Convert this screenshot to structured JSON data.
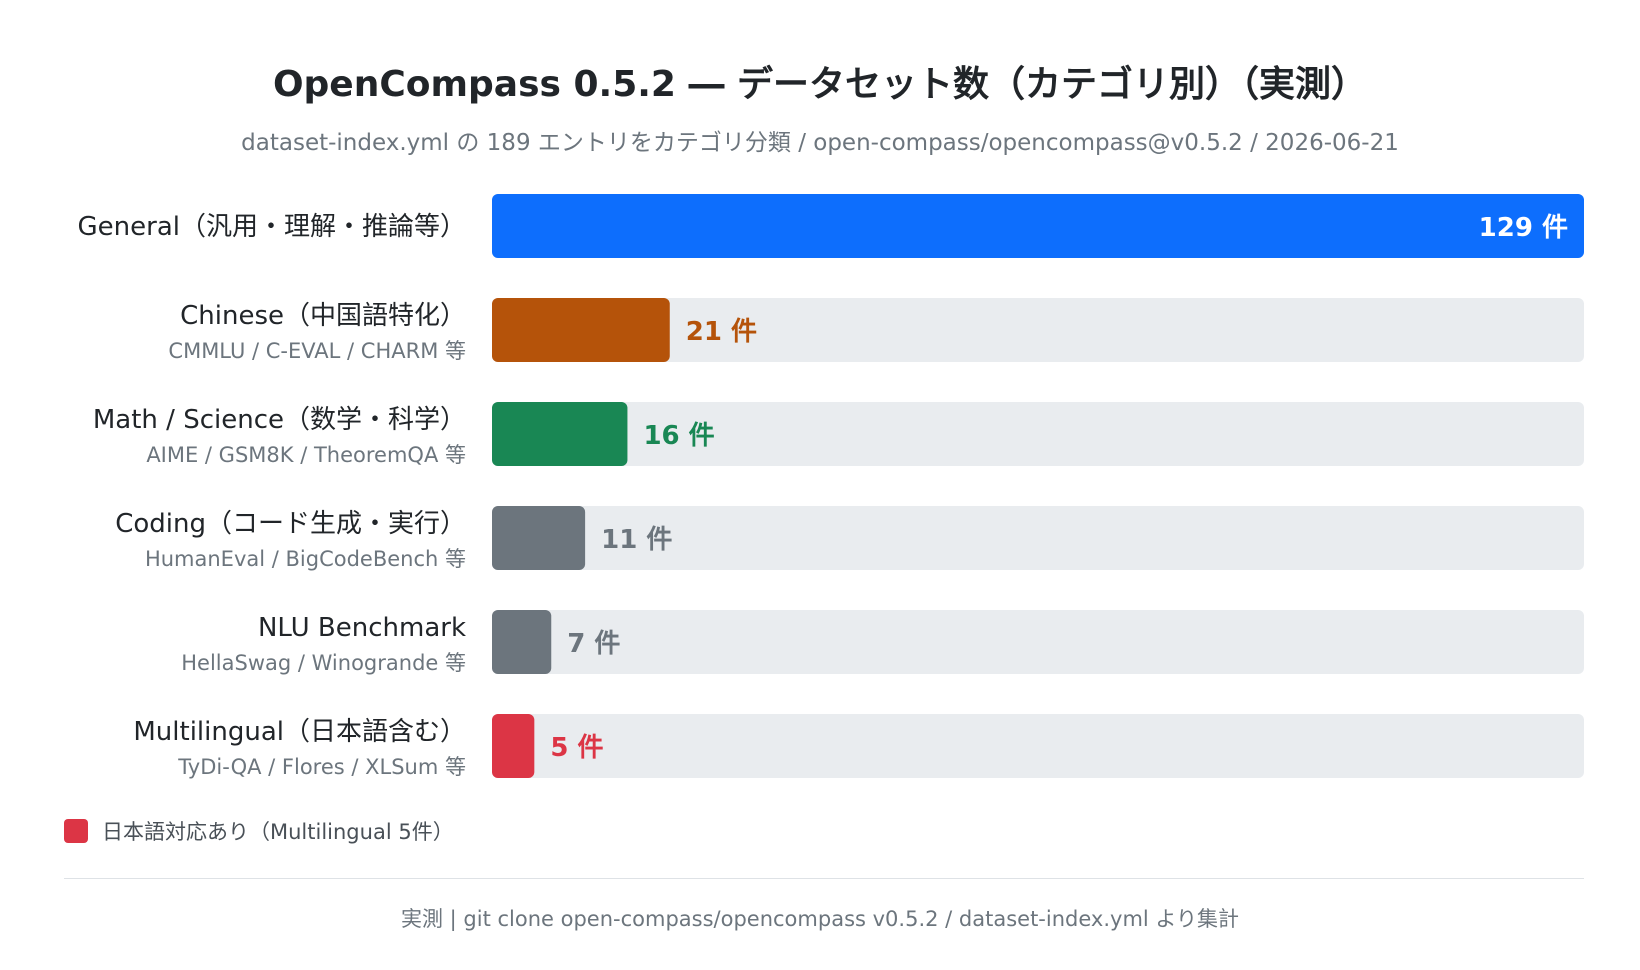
{
  "header": {
    "title": "OpenCompass 0.5.2 ― データセット数（カテゴリ別）（実測）",
    "subtitle": "dataset-index.yml の 189 エントリをカテゴリ分類 / open-compass/opencompass@v0.5.2 / 2026-06-21"
  },
  "chart_data": {
    "type": "bar",
    "orientation": "horizontal",
    "xlim": [
      0,
      129
    ],
    "value_suffix": " 件",
    "grid": false,
    "track_color": "#e9ecef",
    "categories": [
      {
        "label": "General（汎用・理解・推論等）",
        "sublabel": "",
        "value": 129,
        "color": "#0d6efd",
        "value_label": "129 件"
      },
      {
        "label": "Chinese（中国語特化）",
        "sublabel": "CMMLU / C-EVAL / CHARM 等",
        "value": 21,
        "color": "#b5530a",
        "value_label": "21 件"
      },
      {
        "label": "Math / Science（数学・科学）",
        "sublabel": "AIME / GSM8K / TheoremQA 等",
        "value": 16,
        "color": "#198754",
        "value_label": "16 件"
      },
      {
        "label": "Coding（コード生成・実行）",
        "sublabel": "HumanEval / BigCodeBench 等",
        "value": 11,
        "color": "#6c757d",
        "value_label": "11 件"
      },
      {
        "label": "NLU Benchmark",
        "sublabel": "HellaSwag / Winogrande 等",
        "value": 7,
        "color": "#6c757d",
        "value_label": "7 件"
      },
      {
        "label": "Multilingual（日本語含む）",
        "sublabel": "TyDi-QA / Flores / XLSum 等",
        "value": 5,
        "color": "#dc3545",
        "value_label": "5 件"
      }
    ]
  },
  "legend": {
    "label": "日本語対応あり（Multilingual 5件）",
    "color": "#dc3545"
  },
  "footer": {
    "text": "実測 | git clone open-compass/opencompass v0.5.2 / dataset-index.yml より集計"
  }
}
